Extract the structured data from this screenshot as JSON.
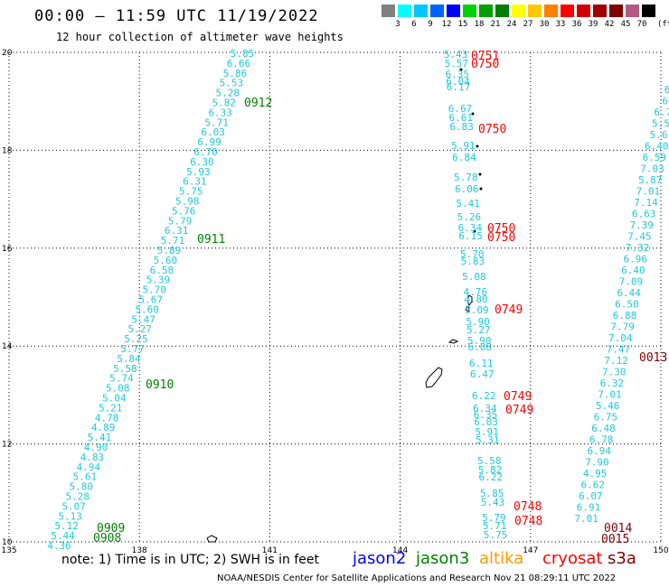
{
  "header": {
    "title": "00:00 – 11:59 UTC 11/19/2022",
    "subtitle": "12 hour collection of altimeter wave heights"
  },
  "legend": {
    "unit": "(ft)",
    "colors": [
      "#808080",
      "#00ffff",
      "#00c8ff",
      "#0064ff",
      "#0000ff",
      "#00d200",
      "#00a000",
      "#008000",
      "#ffff00",
      "#ffc800",
      "#ff8000",
      "#ff0000",
      "#d20000",
      "#a00000",
      "#800000",
      "#b45a82",
      "#000000"
    ],
    "labels": [
      "3",
      "6",
      "9",
      "12",
      "15",
      "18",
      "21",
      "24",
      "27",
      "30",
      "33",
      "36",
      "39",
      "42",
      "45",
      "70"
    ]
  },
  "axes": {
    "x_ticks": [
      135,
      138,
      141,
      144,
      147,
      150
    ],
    "y_ticks": [
      10,
      12,
      14,
      16,
      18,
      20
    ],
    "x_range": [
      135,
      150
    ],
    "y_range": [
      10,
      20
    ]
  },
  "tracks": [
    {
      "color": "#1fc9d9",
      "points": [
        {
          "x": 141.75,
          "y": 19.97,
          "v": "5.85"
        },
        {
          "x": 141.71,
          "y": 19.82,
          "v": "6.66"
        },
        {
          "x": 141.67,
          "y": 19.67,
          "v": "5.86"
        },
        {
          "x": 141.63,
          "y": 19.52,
          "v": "5.53"
        },
        {
          "x": 141.59,
          "y": 19.37,
          "v": "5.28"
        },
        {
          "x": 141.55,
          "y": 19.22,
          "v": "5.82"
        },
        {
          "x": 141.51,
          "y": 19.07,
          "v": "6.33"
        },
        {
          "x": 141.47,
          "y": 18.92,
          "v": "5.71"
        },
        {
          "x": 141.43,
          "y": 18.77,
          "v": "6.03"
        },
        {
          "x": 141.39,
          "y": 18.62,
          "v": "6.99"
        },
        {
          "x": 141.35,
          "y": 18.47,
          "v": "6.70"
        },
        {
          "x": 141.31,
          "y": 18.32,
          "v": "6.30"
        },
        {
          "x": 141.27,
          "y": 18.17,
          "v": "5.93"
        },
        {
          "x": 141.23,
          "y": 18.02,
          "v": "6.31"
        },
        {
          "x": 141.19,
          "y": 17.87,
          "v": "5.75"
        },
        {
          "x": 141.15,
          "y": 17.72,
          "v": "5.98"
        },
        {
          "x": 141.11,
          "y": 17.57,
          "v": "5.76"
        },
        {
          "x": 141.07,
          "y": 17.42,
          "v": "5.79"
        },
        {
          "x": 141.03,
          "y": 17.27,
          "v": "6.31"
        },
        {
          "x": 140.99,
          "y": 17.12,
          "v": "5.71"
        },
        {
          "x": 140.95,
          "y": 16.97,
          "v": "5.89"
        },
        {
          "x": 140.91,
          "y": 16.82,
          "v": "5.60"
        },
        {
          "x": 140.87,
          "y": 16.67,
          "v": "6.58"
        },
        {
          "x": 140.83,
          "y": 16.52,
          "v": "5.39"
        },
        {
          "x": 140.79,
          "y": 16.37,
          "v": "5.70"
        },
        {
          "x": 140.75,
          "y": 16.22,
          "v": "5.67"
        },
        {
          "x": 140.71,
          "y": 16.07,
          "v": "5.60"
        },
        {
          "x": 140.67,
          "y": 15.92,
          "v": "5.47"
        },
        {
          "x": 140.63,
          "y": 15.77,
          "v": "5.27"
        },
        {
          "x": 140.59,
          "y": 15.62,
          "v": "5.25"
        },
        {
          "x": 140.55,
          "y": 15.47,
          "v": "5.77"
        },
        {
          "x": 140.51,
          "y": 15.32,
          "v": "5.84"
        },
        {
          "x": 140.47,
          "y": 15.17,
          "v": "5.58"
        },
        {
          "x": 140.43,
          "y": 15.02,
          "v": "5.74"
        },
        {
          "x": 140.39,
          "y": 14.87,
          "v": "5.08"
        },
        {
          "x": 140.35,
          "y": 14.72,
          "v": "5.04"
        },
        {
          "x": 140.31,
          "y": 14.57,
          "v": "5.21"
        },
        {
          "x": 140.27,
          "y": 14.42,
          "v": "4.78"
        },
        {
          "x": 140.23,
          "y": 14.27,
          "v": "4.89"
        },
        {
          "x": 140.19,
          "y": 14.12,
          "v": "5.41"
        },
        {
          "x": 140.15,
          "y": 13.97,
          "v": "4.90"
        },
        {
          "x": 140.11,
          "y": 13.82,
          "v": "4.83"
        },
        {
          "x": 140.07,
          "y": 13.67,
          "v": "4.94"
        },
        {
          "x": 140.03,
          "y": 13.52,
          "v": "5.61"
        },
        {
          "x": 139.99,
          "y": 13.37,
          "v": "5.80"
        },
        {
          "x": 139.95,
          "y": 13.22,
          "v": "5.28"
        },
        {
          "x": 139.91,
          "y": 13.07,
          "v": "5.07"
        },
        {
          "x": 139.87,
          "y": 12.92,
          "v": "5.13"
        },
        {
          "x": 139.83,
          "y": 12.77,
          "v": "5.12"
        },
        {
          "x": 139.79,
          "y": 12.62,
          "v": "5.44"
        },
        {
          "x": 139.75,
          "y": 12.47,
          "v": "4.36"
        }
      ]
    },
    {
      "color": "#1fc9d9",
      "points": [
        {
          "x": 145.0,
          "y": 19.97,
          "v": "5.43"
        },
        {
          "x": 145.0,
          "y": 19.82,
          "v": "5.57"
        },
        {
          "x": 145.0,
          "y": 19.62,
          "v": "6.35"
        },
        {
          "x": 145.0,
          "y": 19.54,
          "v": "6.04"
        },
        {
          "x": 145.0,
          "y": 19.45,
          "v": "6.17"
        },
        {
          "x": 145.0,
          "y": 19.15,
          "v": "6.67"
        },
        {
          "x": 145.0,
          "y": 19.0,
          "v": "6.61"
        },
        {
          "x": 145.0,
          "y": 18.84,
          "v": "6.83"
        },
        {
          "x": 145.0,
          "y": 18.45,
          "v": "5.91"
        },
        {
          "x": 145.0,
          "y": 18.3,
          "v": "6.84"
        },
        {
          "x": 145.0,
          "y": 17.9,
          "v": "5.78"
        },
        {
          "x": 145.0,
          "y": 17.75,
          "v": "6.06"
        },
        {
          "x": 145.0,
          "y": 17.5,
          "v": "5.41"
        },
        {
          "x": 145.0,
          "y": 17.3,
          "v": "5.26"
        },
        {
          "x": 145.0,
          "y": 17.1,
          "v": "6.34"
        },
        {
          "x": 145.0,
          "y": 17.0,
          "v": "6.15"
        },
        {
          "x": 145.0,
          "y": 16.7,
          "v": "5.70"
        },
        {
          "x": 145.0,
          "y": 16.6,
          "v": "5.83"
        },
        {
          "x": 145.0,
          "y": 16.3,
          "v": "5.08"
        },
        {
          "x": 145.0,
          "y": 16.0,
          "v": "4.76"
        },
        {
          "x": 145.0,
          "y": 15.9,
          "v": "4.80"
        },
        {
          "x": 145.0,
          "y": 15.75,
          "v": "5.09"
        },
        {
          "x": 145.0,
          "y": 15.55,
          "v": "5.90"
        },
        {
          "x": 145.0,
          "y": 15.45,
          "v": "5.27"
        },
        {
          "x": 145.0,
          "y": 15.2,
          "v": "5.90"
        },
        {
          "x": 145.0,
          "y": 15.1,
          "v": "6.08"
        },
        {
          "x": 145.0,
          "y": 14.75,
          "v": "6.11"
        },
        {
          "x": 145.0,
          "y": 14.5,
          "v": "6.47"
        },
        {
          "x": 145.0,
          "y": 14.05,
          "v": "6.22"
        },
        {
          "x": 145.0,
          "y": 13.8,
          "v": "6.34"
        },
        {
          "x": 145.0,
          "y": 13.7,
          "v": "6.35"
        },
        {
          "x": 145.0,
          "y": 13.6,
          "v": "6.03"
        },
        {
          "x": 145.0,
          "y": 13.4,
          "v": "5.91"
        },
        {
          "x": 145.0,
          "y": 13.25,
          "v": "5.31"
        },
        {
          "x": 145.0,
          "y": 12.7,
          "v": "5.58"
        },
        {
          "x": 145.0,
          "y": 12.6,
          "v": "5.82"
        },
        {
          "x": 145.0,
          "y": 12.5,
          "v": "6.22"
        },
        {
          "x": 145.0,
          "y": 12.2,
          "v": "5.85"
        },
        {
          "x": 145.0,
          "y": 12.05,
          "v": "5.43"
        },
        {
          "x": 145.0,
          "y": 11.8,
          "v": "5.79"
        },
        {
          "x": 145.0,
          "y": 11.7,
          "v": "5.71"
        },
        {
          "x": 145.0,
          "y": 11.55,
          "v": "5.75"
        }
      ]
    },
    {
      "color": "#1fc9d9",
      "points": [
        {
          "x": 147.5,
          "y": 19.8,
          "v": "6"
        },
        {
          "x": 147.5,
          "y": 19.7,
          "v": "6"
        },
        {
          "x": 147.5,
          "y": 19.55,
          "v": "6.7"
        },
        {
          "x": 147.5,
          "y": 19.42,
          "v": "5.5"
        },
        {
          "x": 147.5,
          "y": 19.35,
          "v": "5.6"
        },
        {
          "x": 147.5,
          "y": 19.25,
          "v": "6.40"
        },
        {
          "x": 147.5,
          "y": 19.1,
          "v": "6.59"
        },
        {
          "x": 147.5,
          "y": 18.95,
          "v": "7.03"
        },
        {
          "x": 147.5,
          "y": 18.8,
          "v": "5.87"
        },
        {
          "x": 147.5,
          "y": 18.65,
          "v": "7.01"
        },
        {
          "x": 147.5,
          "y": 18.5,
          "v": "7.14"
        },
        {
          "x": 147.5,
          "y": 18.35,
          "v": "6.63"
        },
        {
          "x": 147.5,
          "y": 18.2,
          "v": "7.39"
        },
        {
          "x": 147.5,
          "y": 18.05,
          "v": "7.45"
        },
        {
          "x": 147.5,
          "y": 17.9,
          "v": "7.32"
        },
        {
          "x": 147.5,
          "y": 17.75,
          "v": "6.96"
        },
        {
          "x": 147.5,
          "y": 17.6,
          "v": "6.40"
        },
        {
          "x": 147.5,
          "y": 17.45,
          "v": "7.09"
        },
        {
          "x": 147.5,
          "y": 17.3,
          "v": "6.44"
        },
        {
          "x": 147.5,
          "y": 17.15,
          "v": "6.50"
        },
        {
          "x": 147.5,
          "y": 17.0,
          "v": "6.88"
        },
        {
          "x": 147.5,
          "y": 16.85,
          "v": "7.79"
        },
        {
          "x": 147.5,
          "y": 16.7,
          "v": "7.04"
        },
        {
          "x": 147.5,
          "y": 16.55,
          "v": "7.47"
        },
        {
          "x": 147.5,
          "y": 16.4,
          "v": "7.12"
        },
        {
          "x": 147.5,
          "y": 16.25,
          "v": "7.30"
        },
        {
          "x": 147.5,
          "y": 16.1,
          "v": "6.32"
        },
        {
          "x": 147.5,
          "y": 15.95,
          "v": "7.01"
        },
        {
          "x": 147.5,
          "y": 15.8,
          "v": "5.46"
        },
        {
          "x": 147.5,
          "y": 15.65,
          "v": "6.75"
        },
        {
          "x": 147.5,
          "y": 15.5,
          "v": "6.48"
        },
        {
          "x": 147.5,
          "y": 15.35,
          "v": "6.78"
        },
        {
          "x": 147.5,
          "y": 15.2,
          "v": "6.94"
        },
        {
          "x": 147.5,
          "y": 15.05,
          "v": "7.90"
        },
        {
          "x": 147.5,
          "y": 14.9,
          "v": "4.95"
        },
        {
          "x": 147.5,
          "y": 14.75,
          "v": "6.62"
        },
        {
          "x": 147.5,
          "y": 14.6,
          "v": "6.07"
        },
        {
          "x": 147.5,
          "y": 14.45,
          "v": "6.91"
        },
        {
          "x": 147.5,
          "y": 14.3,
          "v": "7.01"
        }
      ]
    }
  ],
  "passes": [
    {
      "label": "0912",
      "color": "#008000"
    },
    {
      "label": "0911",
      "color": "#008000"
    },
    {
      "label": "0910",
      "color": "#008000"
    },
    {
      "label": "0909",
      "color": "#008000"
    },
    {
      "label": "0908",
      "color": "#008000"
    },
    {
      "label": "0751",
      "color": "#ff0000"
    },
    {
      "label": "0750",
      "color": "#ff0000"
    },
    {
      "label": "0750",
      "color": "#ff0000"
    },
    {
      "label": "0750",
      "color": "#ff0000"
    },
    {
      "label": "0750",
      "color": "#ff0000"
    },
    {
      "label": "0749",
      "color": "#ff0000"
    },
    {
      "label": "0749",
      "color": "#ff0000"
    },
    {
      "label": "0749",
      "color": "#ff0000"
    },
    {
      "label": "0748",
      "color": "#ff0000"
    },
    {
      "label": "0748",
      "color": "#ff0000"
    },
    {
      "label": "0013",
      "color": "#800000"
    },
    {
      "label": "0014",
      "color": "#800000"
    },
    {
      "label": "0015",
      "color": "#800000"
    }
  ],
  "footer": {
    "note": "note:  1) Time is in UTC;  2) SWH is in feet",
    "satellites": [
      {
        "name": "jason2",
        "color": "#0000ff"
      },
      {
        "name": "jason3",
        "color": "#008000"
      },
      {
        "name": "altika",
        "color": "#ff9900"
      },
      {
        "name": "cryosat",
        "color": "#ff0000"
      },
      {
        "name": "s3a",
        "color": "#800000"
      }
    ],
    "credit": "NOAA/NESDIS Center for Satellite Applications and Research    Nov 21 08:29:11 UTC 2022"
  }
}
